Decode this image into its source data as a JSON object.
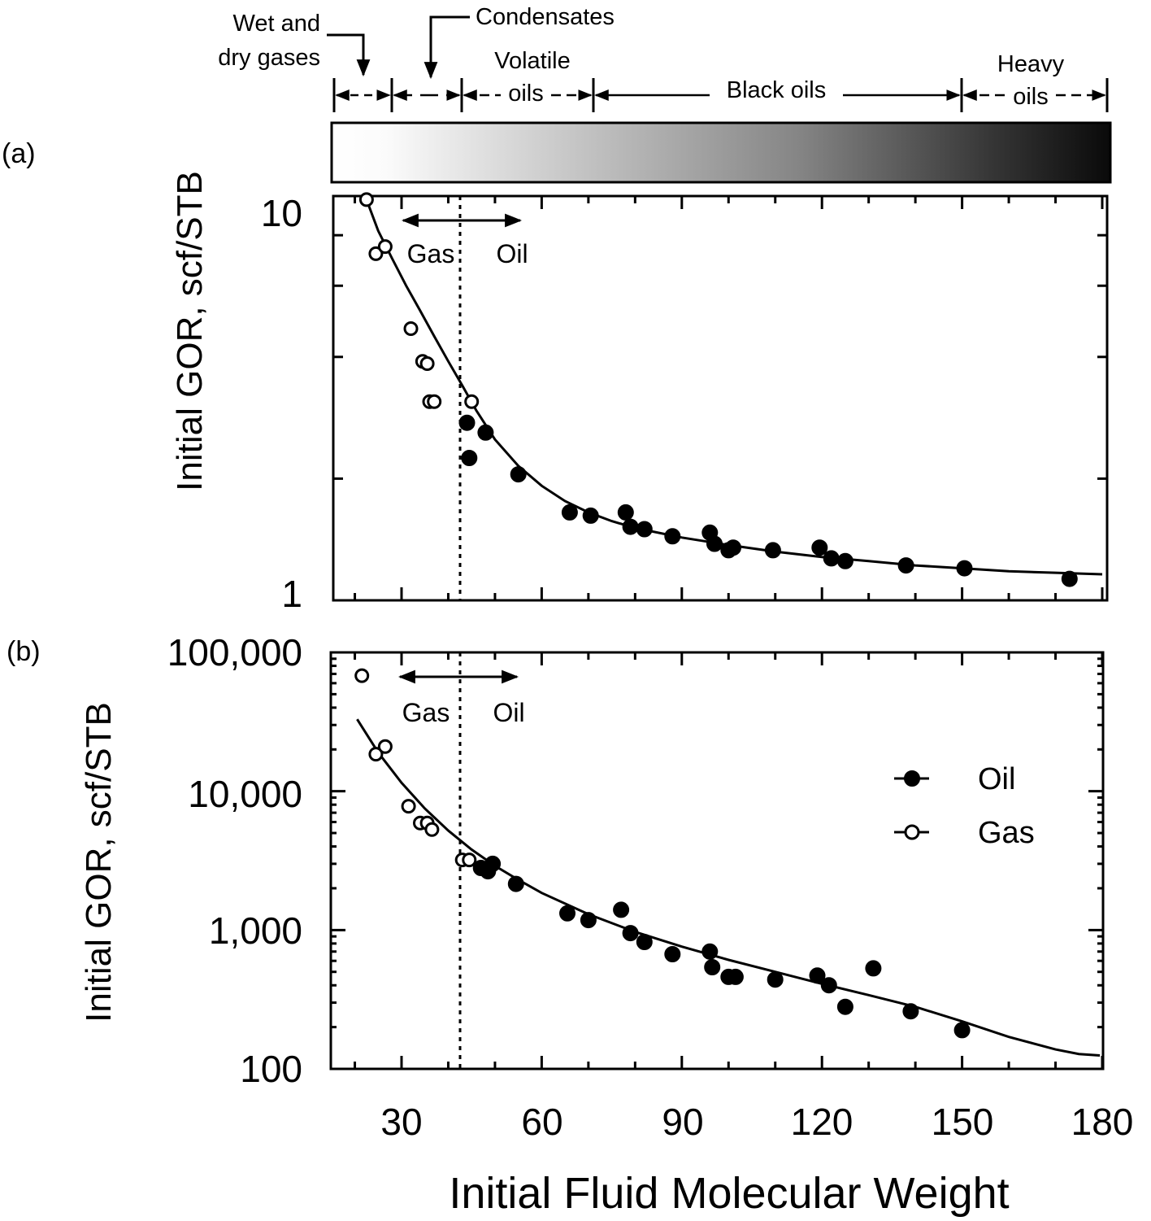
{
  "chart_data": [
    {
      "id": "a",
      "type": "scatter",
      "panel_label": "(a)",
      "ylabel": "Initial GOR, scf/STB",
      "yscale": "log",
      "ylim": [
        1,
        10
      ],
      "xlim": [
        15,
        180
      ],
      "y_tick_labels": [
        "1",
        "10"
      ],
      "y_tick_values": [
        1,
        10
      ],
      "divider_x": 43,
      "gas_label": "Gas",
      "oil_label": "Oil",
      "series": [
        {
          "name": "Gas",
          "marker": "open-circle",
          "x": [
            22.5,
            24.5,
            26.5,
            32,
            34.5,
            35.5,
            36,
            37,
            45
          ],
          "y": [
            9.8,
            7.2,
            7.5,
            4.7,
            3.9,
            3.85,
            3.1,
            3.1,
            3.1
          ]
        },
        {
          "name": "Oil",
          "marker": "filled-circle",
          "x": [
            44,
            44.5,
            48,
            55,
            66,
            70.5,
            78,
            79,
            82,
            88,
            96,
            97,
            100,
            101,
            109.5,
            119.5,
            122,
            125,
            138,
            150.5,
            173
          ],
          "y": [
            2.75,
            2.25,
            2.6,
            2.05,
            1.65,
            1.62,
            1.65,
            1.52,
            1.5,
            1.44,
            1.47,
            1.38,
            1.33,
            1.35,
            1.33,
            1.35,
            1.27,
            1.25,
            1.22,
            1.2,
            1.13
          ]
        },
        {
          "name": "Fit",
          "marker": "line",
          "x": [
            22.5,
            25,
            28,
            31,
            34,
            37,
            40,
            43,
            46,
            50,
            55,
            60,
            65,
            70,
            75,
            80,
            90,
            100,
            110,
            120,
            130,
            140,
            150,
            160,
            170,
            180
          ],
          "y": [
            9.8,
            8.2,
            7.0,
            6.0,
            5.2,
            4.5,
            3.9,
            3.4,
            2.95,
            2.5,
            2.15,
            1.92,
            1.76,
            1.65,
            1.57,
            1.51,
            1.43,
            1.37,
            1.32,
            1.28,
            1.25,
            1.22,
            1.2,
            1.18,
            1.17,
            1.16
          ]
        }
      ]
    },
    {
      "id": "b",
      "type": "scatter",
      "panel_label": "(b)",
      "ylabel": "Initial GOR, scf/STB",
      "xlabel": "Initial Fluid Molecular Weight",
      "yscale": "log",
      "ylim": [
        100,
        100000
      ],
      "xlim": [
        15,
        180
      ],
      "x_tick_labels": [
        "30",
        "60",
        "90",
        "120",
        "150",
        "180"
      ],
      "x_tick_values": [
        30,
        60,
        90,
        120,
        150,
        180
      ],
      "y_tick_labels": [
        "100",
        "1,000",
        "10,000",
        "100,000"
      ],
      "y_tick_values": [
        100,
        1000,
        10000,
        100000
      ],
      "divider_x": 43,
      "gas_label": "Gas",
      "oil_label": "Oil",
      "legend": {
        "position": "right",
        "oil": "Oil",
        "gas": "Gas"
      },
      "series": [
        {
          "name": "Gas",
          "marker": "open-circle",
          "x": [
            21.5,
            24.5,
            26.5,
            31.5,
            34,
            35.5,
            36.5,
            43,
            44.5
          ],
          "y": [
            68000,
            18500,
            21000,
            7800,
            5900,
            5900,
            5300,
            3200,
            3200
          ]
        },
        {
          "name": "Oil",
          "marker": "filled-circle",
          "x": [
            47,
            48.5,
            49.5,
            54.5,
            65.5,
            70,
            77,
            79,
            82,
            88,
            96,
            96.5,
            100,
            101.5,
            110,
            119,
            121.5,
            125,
            131,
            139,
            150
          ],
          "y": [
            2800,
            2650,
            3000,
            2150,
            1320,
            1180,
            1400,
            950,
            820,
            670,
            700,
            540,
            460,
            460,
            440,
            470,
            400,
            280,
            530,
            260,
            190
          ]
        },
        {
          "name": "Fit",
          "marker": "line",
          "x": [
            20.5,
            25,
            30,
            35,
            40,
            45,
            50,
            55,
            60,
            70,
            80,
            90,
            100,
            110,
            120,
            130,
            140,
            150,
            160,
            170,
            175,
            179.5
          ],
          "y": [
            33000,
            19000,
            11500,
            7500,
            5200,
            3800,
            2900,
            2300,
            1850,
            1300,
            970,
            760,
            610,
            500,
            410,
            340,
            280,
            220,
            170,
            138,
            128,
            125
          ]
        }
      ]
    }
  ],
  "fluid_bar": {
    "wet_dry_gases": "Wet and\ndry gases",
    "wet_dry_line1": "Wet and",
    "wet_dry_line2": "dry gases",
    "condensates": "Condensates",
    "volatile_line1": "Volatile",
    "volatile_line2": "oils",
    "black_oils": "Black oils",
    "heavy_line1": "Heavy",
    "heavy_line2": "oils",
    "boundaries_mw": [
      15,
      28.5,
      43,
      71,
      150,
      180
    ],
    "gradient_start": "#ffffff",
    "gradient_end": "#0a0a0a"
  }
}
